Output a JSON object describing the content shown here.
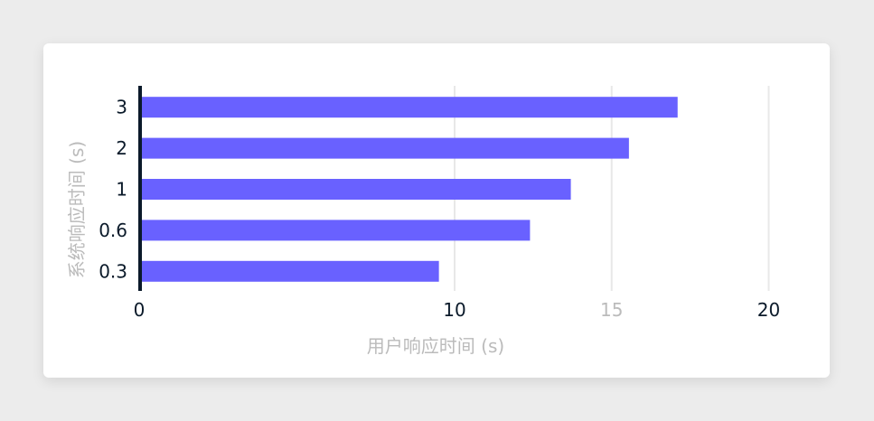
{
  "chart_data": {
    "type": "bar",
    "orientation": "horizontal",
    "categories": [
      "0.3",
      "0.6",
      "1",
      "2",
      "3"
    ],
    "values": [
      9.5,
      12.4,
      13.7,
      15.55,
      17.1
    ],
    "xlabel": "用户响应时间 (s)",
    "ylabel": "系统响应时间 (s)",
    "xlim": [
      0,
      20
    ],
    "xticks": [
      {
        "value": 0,
        "label": "0",
        "muted": false
      },
      {
        "value": 10,
        "label": "10",
        "muted": false
      },
      {
        "value": 15,
        "label": "15",
        "muted": true
      },
      {
        "value": 20,
        "label": "20",
        "muted": false
      }
    ],
    "grid": true,
    "bar_color": "#6961ff",
    "axis_color": "#0b1a2a",
    "muted_text_color": "#bbbbbb"
  }
}
